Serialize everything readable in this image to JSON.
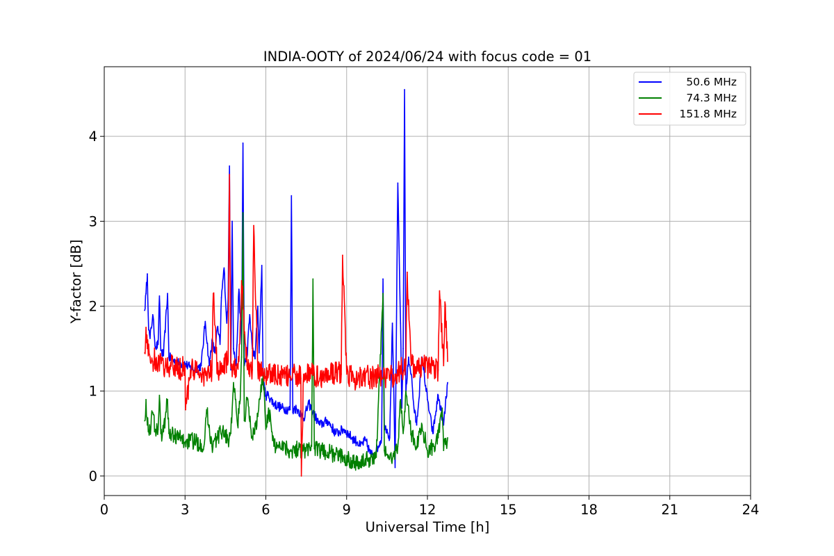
{
  "chart_data": {
    "type": "line",
    "title": "INDIA-OOTY of 2024/06/24 with focus code = 01",
    "xlabel": "Universal Time [h]",
    "ylabel": "Y-factor [dB]",
    "xlim": [
      0,
      24
    ],
    "ylim": [
      -0.23,
      4.82
    ],
    "xticks": [
      0,
      3,
      6,
      9,
      12,
      15,
      18,
      21,
      24
    ],
    "yticks": [
      0,
      1,
      2,
      3,
      4
    ],
    "xtick_labels": [
      "0",
      "3",
      "6",
      "9",
      "12",
      "15",
      "18",
      "21",
      "24"
    ],
    "ytick_labels": [
      "0",
      "1",
      "2",
      "3",
      "4"
    ],
    "grid": true,
    "legend_position": "top-right",
    "series": [
      {
        "name": "50.6 MHz",
        "color": "#0000ff",
        "x": [
          1.5,
          1.55,
          1.6,
          1.65,
          1.7,
          1.8,
          1.9,
          2.0,
          2.05,
          2.1,
          2.2,
          2.35,
          2.4,
          2.5,
          2.7,
          3.0,
          3.3,
          3.6,
          3.75,
          3.9,
          4.0,
          4.1,
          4.2,
          4.3,
          4.35,
          4.45,
          4.55,
          4.6,
          4.65,
          4.7,
          4.75,
          4.8,
          4.9,
          5.0,
          5.1,
          5.15,
          5.2,
          5.3,
          5.4,
          5.5,
          5.6,
          5.7,
          5.75,
          5.85,
          5.9,
          6.0,
          6.1,
          6.3,
          6.6,
          6.9,
          6.95,
          7.0,
          7.05,
          7.2,
          7.4,
          7.6,
          7.8,
          8.0,
          8.3,
          8.6,
          8.9,
          9.2,
          9.4,
          9.5,
          9.7,
          9.9,
          10.1,
          10.3,
          10.35,
          10.4,
          10.5,
          10.6,
          10.7,
          10.8,
          10.9,
          11.0,
          11.05,
          11.1,
          11.15,
          11.2,
          11.3,
          11.4,
          11.5,
          11.6,
          11.8,
          12.0,
          12.2,
          12.4,
          12.6,
          12.75
        ],
        "y": [
          1.95,
          2.15,
          2.38,
          1.72,
          1.62,
          1.9,
          1.52,
          1.55,
          2.12,
          1.48,
          1.42,
          2.15,
          1.4,
          1.38,
          1.33,
          1.32,
          1.25,
          1.3,
          1.82,
          1.3,
          1.6,
          1.45,
          1.75,
          1.55,
          2.1,
          2.45,
          1.8,
          2.1,
          3.65,
          1.25,
          3.0,
          1.5,
          1.3,
          2.2,
          1.55,
          3.92,
          1.3,
          1.4,
          1.9,
          1.5,
          1.38,
          2.0,
          1.45,
          2.48,
          1.1,
          0.95,
          0.95,
          0.85,
          0.8,
          0.78,
          3.3,
          0.75,
          0.8,
          0.78,
          0.68,
          0.85,
          0.72,
          0.6,
          0.65,
          0.5,
          0.55,
          0.45,
          0.4,
          0.35,
          0.42,
          0.25,
          0.3,
          0.45,
          2.32,
          0.6,
          0.55,
          0.45,
          1.8,
          0.1,
          3.45,
          1.8,
          0.8,
          1.5,
          4.55,
          0.95,
          1.4,
          1.2,
          0.8,
          0.6,
          1.4,
          0.9,
          0.5,
          0.95,
          0.6,
          1.1
        ]
      },
      {
        "name": "74.3 MHz",
        "color": "#008000",
        "x": [
          1.5,
          1.55,
          1.6,
          1.7,
          1.8,
          1.9,
          2.0,
          2.05,
          2.1,
          2.2,
          2.35,
          2.4,
          2.6,
          2.8,
          3.0,
          3.2,
          3.4,
          3.6,
          3.7,
          3.8,
          4.0,
          4.2,
          4.4,
          4.6,
          4.7,
          4.8,
          4.95,
          5.05,
          5.1,
          5.15,
          5.2,
          5.3,
          5.5,
          5.7,
          5.9,
          6.0,
          6.1,
          6.3,
          6.6,
          6.9,
          7.2,
          7.5,
          7.7,
          7.75,
          7.8,
          8.0,
          8.3,
          8.6,
          8.9,
          9.2,
          9.5,
          9.8,
          10.1,
          10.35,
          10.4,
          10.5,
          10.7,
          10.9,
          11.0,
          11.1,
          11.2,
          11.4,
          11.6,
          11.8,
          12.0,
          12.2,
          12.4,
          12.55,
          12.6,
          12.75
        ],
        "y": [
          0.65,
          0.9,
          0.6,
          0.55,
          0.75,
          0.55,
          0.55,
          0.95,
          0.5,
          0.52,
          0.9,
          0.5,
          0.48,
          0.45,
          0.4,
          0.42,
          0.4,
          0.38,
          0.35,
          0.78,
          0.35,
          0.45,
          0.55,
          0.42,
          0.5,
          1.1,
          0.6,
          0.9,
          1.4,
          3.1,
          0.65,
          0.9,
          0.45,
          0.7,
          1.2,
          0.55,
          0.8,
          0.35,
          0.38,
          0.3,
          0.32,
          0.3,
          0.35,
          2.32,
          0.32,
          0.3,
          0.28,
          0.25,
          0.22,
          0.18,
          0.15,
          0.2,
          0.22,
          2.15,
          0.3,
          0.25,
          0.2,
          0.35,
          0.9,
          0.5,
          1.0,
          0.5,
          0.35,
          0.6,
          0.3,
          0.35,
          0.45,
          0.8,
          0.3,
          0.45
        ]
      },
      {
        "name": "151.8 MHz",
        "color": "#ff0000",
        "x": [
          1.5,
          1.55,
          1.6,
          1.7,
          1.8,
          1.9,
          2.0,
          2.2,
          2.4,
          2.6,
          2.8,
          3.0,
          3.02,
          3.2,
          3.4,
          3.6,
          3.8,
          4.0,
          4.05,
          4.2,
          4.4,
          4.6,
          4.65,
          4.7,
          4.8,
          5.0,
          5.1,
          5.3,
          5.5,
          5.55,
          5.7,
          5.9,
          6.1,
          6.3,
          6.5,
          6.7,
          6.9,
          7.1,
          7.3,
          7.32,
          7.4,
          7.6,
          7.8,
          8.0,
          8.3,
          8.6,
          8.8,
          8.85,
          9.0,
          9.3,
          9.6,
          9.9,
          10.2,
          10.5,
          10.8,
          11.0,
          11.2,
          11.25,
          11.4,
          11.6,
          11.8,
          12.0,
          12.2,
          12.4,
          12.45,
          12.6,
          12.65,
          12.75
        ],
        "y": [
          1.45,
          1.75,
          1.5,
          1.4,
          1.35,
          1.38,
          1.32,
          1.3,
          1.28,
          1.3,
          1.25,
          1.3,
          0.78,
          1.25,
          1.22,
          1.2,
          1.18,
          1.25,
          2.15,
          1.2,
          1.3,
          1.35,
          3.55,
          1.3,
          1.25,
          1.35,
          2.3,
          1.3,
          1.25,
          2.95,
          1.25,
          1.22,
          1.2,
          1.18,
          1.2,
          1.15,
          1.18,
          1.2,
          1.15,
          0.0,
          1.2,
          1.18,
          1.2,
          1.15,
          1.2,
          1.22,
          1.2,
          2.6,
          1.2,
          1.15,
          1.2,
          1.15,
          1.18,
          1.15,
          1.2,
          1.25,
          1.3,
          2.4,
          1.3,
          1.25,
          1.3,
          1.28,
          1.3,
          1.25,
          2.18,
          1.3,
          2.05,
          1.35
        ]
      }
    ]
  }
}
